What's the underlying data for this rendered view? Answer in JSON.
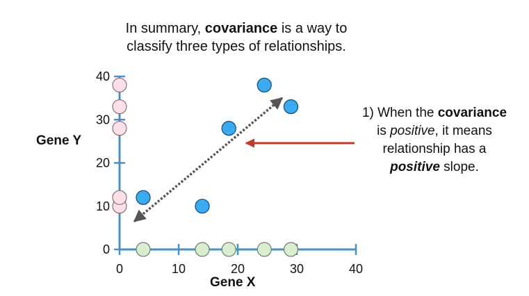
{
  "headline": {
    "part1": "In summary, ",
    "bold": "covariance",
    "part2": " is a way to",
    "line2": "classify three types of relationships."
  },
  "callout": {
    "line1_a": "1) When the ",
    "line1_b": "covariance",
    "line2_a": "is ",
    "line2_b": "positive",
    "line2_c": ", it means",
    "line3": "relationship has a",
    "line4_a": "positive",
    "line4_b": " slope."
  },
  "chart_data": {
    "type": "scatter",
    "xlabel": "Gene X",
    "ylabel": "Gene Y",
    "xlim": [
      0,
      40
    ],
    "ylim": [
      0,
      40
    ],
    "x_ticks": [
      0,
      10,
      20,
      30,
      40
    ],
    "y_ticks": [
      0,
      10,
      20,
      30,
      40
    ],
    "series": [
      {
        "color": "#3aabf0",
        "x": [
          4,
          14,
          18.5,
          24.5,
          29
        ],
        "y": [
          12,
          10,
          28,
          38,
          33
        ]
      }
    ],
    "x_axis_projections": [
      4,
      14,
      18.5,
      24.5,
      29
    ],
    "y_axis_projections": [
      10,
      12,
      28,
      33,
      38
    ],
    "trend_arrow": {
      "from": [
        2.5,
        6.5
      ],
      "to": [
        27.5,
        35
      ]
    },
    "colors": {
      "axis": "#4a90c8",
      "point": "#3aabf0",
      "point_stroke": "#1a4f7a",
      "x_projection": "#d8efcf",
      "y_projection": "#fbe0e8",
      "callout_arrow": "#c0392b",
      "trend_arrow": "#555555"
    }
  }
}
